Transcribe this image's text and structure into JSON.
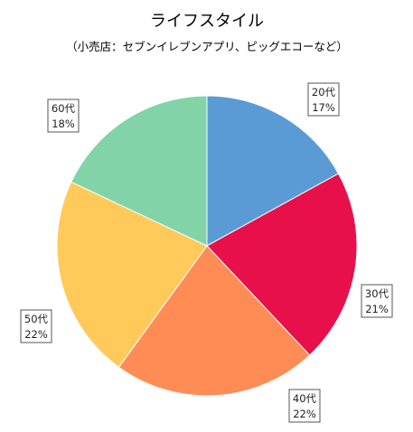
{
  "chart_data": {
    "type": "pie",
    "title": "ライフスタイル",
    "subtitle": "（小売店：セブンイレブンアプリ、ピッグエコーなど）",
    "categories": [
      "20代",
      "30代",
      "40代",
      "50代",
      "60代"
    ],
    "values": [
      17,
      21,
      22,
      22,
      18
    ],
    "value_labels": [
      "17%",
      "21%",
      "22%",
      "22%",
      "18%"
    ],
    "colors": [
      "#5B9BD5",
      "#E8104A",
      "#FF8C55",
      "#FFCA5A",
      "#82D4A8"
    ],
    "start_angle": "12 o'clock",
    "direction": "clockwise",
    "legend": "none"
  }
}
